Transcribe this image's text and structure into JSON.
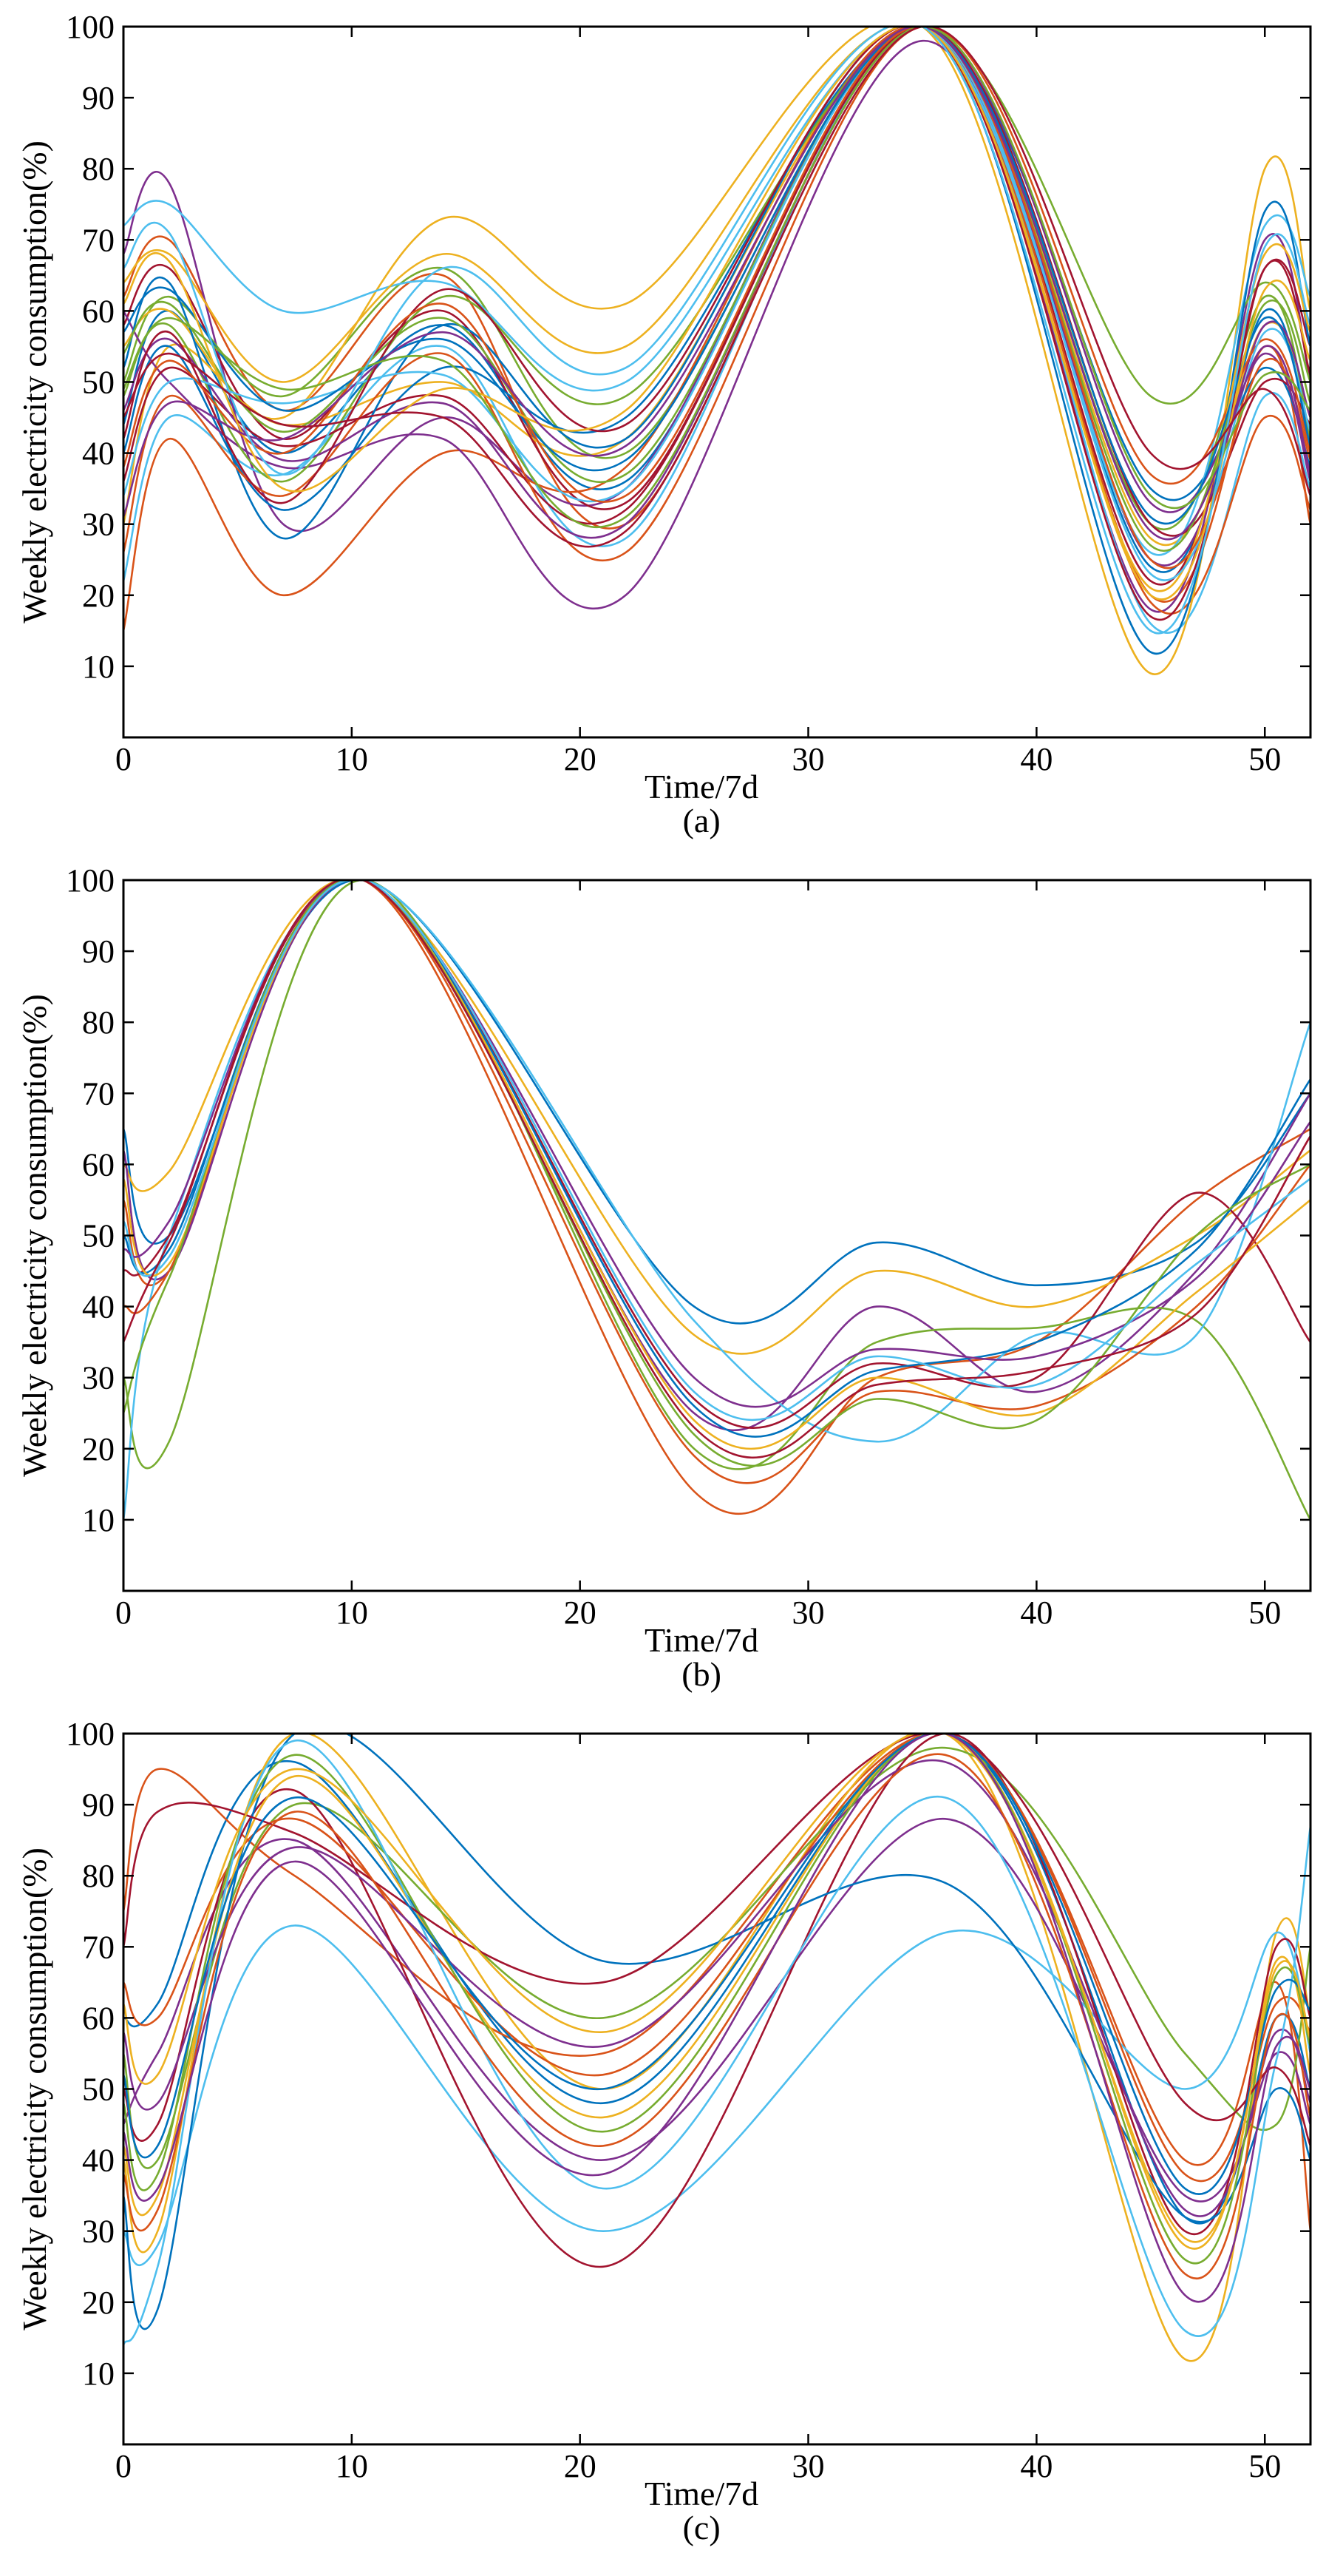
{
  "figure": {
    "panels": [
      {
        "caption": "(a)",
        "xlabel": "Time/7d",
        "ylabel": "Weekly electricity consumption(%)"
      },
      {
        "caption": "(b)",
        "xlabel": "Time/7d",
        "ylabel": "Weekly electricity consumption(%)"
      },
      {
        "caption": "(c)",
        "xlabel": "Time/7d",
        "ylabel": "Weekly electricity consumption(%)"
      }
    ],
    "palette": [
      "#0072BD",
      "#D95319",
      "#EDB120",
      "#7E2F8E",
      "#77AC30",
      "#4DBEEE",
      "#A2142F"
    ]
  },
  "chart_data": [
    {
      "type": "line",
      "title": "",
      "caption": "(a)",
      "xlabel": "Time/7d",
      "ylabel": "Weekly electricity consumption(%)",
      "xlim": [
        0,
        52
      ],
      "ylim": [
        0,
        100
      ],
      "xticks": [
        0,
        10,
        20,
        30,
        40,
        50
      ],
      "yticks": [
        10,
        20,
        30,
        40,
        50,
        60,
        70,
        80,
        90,
        100
      ],
      "grid": false,
      "legend": "none",
      "x": [
        0,
        2,
        7,
        14,
        22,
        35,
        45,
        50,
        52
      ],
      "series": [
        {
          "values": [
            44,
            60,
            40,
            58,
            36,
            100,
            24,
            60,
            40
          ]
        },
        {
          "values": [
            62,
            70,
            46,
            65,
            30,
            100,
            20,
            55,
            30
          ]
        },
        {
          "values": [
            30,
            55,
            44,
            50,
            42,
            100,
            28,
            58,
            45
          ]
        },
        {
          "values": [
            68,
            78,
            30,
            45,
            35,
            100,
            18,
            70,
            50
          ]
        },
        {
          "values": [
            50,
            62,
            48,
            66,
            40,
            100,
            30,
            62,
            42
          ]
        },
        {
          "values": [
            22,
            45,
            37,
            55,
            28,
            100,
            16,
            48,
            35
          ]
        },
        {
          "values": [
            58,
            66,
            42,
            60,
            33,
            100,
            22,
            66,
            55
          ]
        },
        {
          "values": [
            40,
            55,
            32,
            52,
            45,
            100,
            35,
            52,
            38
          ]
        },
        {
          "values": [
            15,
            42,
            20,
            40,
            38,
            100,
            19,
            45,
            32
          ]
        },
        {
          "values": [
            55,
            60,
            45,
            73,
            61,
            100,
            9,
            80,
            60
          ]
        },
        {
          "values": [
            60,
            50,
            38,
            42,
            20,
            98,
            25,
            58,
            45
          ]
        },
        {
          "values": [
            48,
            58,
            36,
            62,
            48,
            100,
            48,
            64,
            50
          ]
        },
        {
          "values": [
            72,
            75,
            60,
            64,
            50,
            100,
            26,
            72,
            62
          ]
        },
        {
          "values": [
            36,
            52,
            41,
            48,
            32,
            100,
            30,
            50,
            44
          ]
        },
        {
          "values": [
            52,
            64,
            28,
            58,
            42,
            100,
            12,
            74,
            55
          ]
        },
        {
          "values": [
            26,
            48,
            34,
            54,
            26,
            100,
            37,
            56,
            40
          ]
        },
        {
          "values": [
            64,
            68,
            50,
            68,
            55,
            100,
            21,
            68,
            57
          ]
        },
        {
          "values": [
            46,
            56,
            39,
            47,
            30,
            100,
            33,
            54,
            36
          ]
        },
        {
          "values": [
            54,
            61,
            43,
            59,
            37,
            100,
            27,
            61,
            47
          ]
        },
        {
          "values": [
            34,
            50,
            47,
            51,
            35,
            100,
            23,
            57,
            43
          ]
        },
        {
          "values": [
            42,
            57,
            33,
            63,
            44,
            100,
            17,
            66,
            51
          ]
        },
        {
          "values": [
            57,
            63,
            46,
            56,
            39,
            100,
            31,
            59,
            41
          ]
        },
        {
          "values": [
            38,
            53,
            40,
            61,
            34,
            100,
            25,
            53,
            39
          ]
        },
        {
          "values": [
            61,
            67,
            35,
            49,
            46,
            100,
            20,
            63,
            53
          ]
        },
        {
          "values": [
            31,
            47,
            42,
            57,
            41,
            100,
            29,
            55,
            37
          ]
        },
        {
          "values": [
            49,
            59,
            49,
            53,
            31,
            100,
            34,
            51,
            46
          ]
        },
        {
          "values": [
            66,
            71,
            37,
            66,
            52,
            100,
            15,
            69,
            58
          ]
        },
        {
          "values": [
            45,
            54,
            44,
            45,
            29,
            100,
            40,
            49,
            34
          ]
        }
      ]
    },
    {
      "type": "line",
      "title": "",
      "caption": "(b)",
      "xlabel": "Time/7d",
      "ylabel": "Weekly electricity consumption(%)",
      "xlim": [
        0,
        52
      ],
      "ylim": [
        0,
        100
      ],
      "xticks": [
        0,
        10,
        20,
        30,
        40,
        50
      ],
      "yticks": [
        10,
        20,
        30,
        40,
        50,
        60,
        70,
        80,
        90,
        100
      ],
      "grid": false,
      "legend": "none",
      "x": [
        0,
        2,
        10.5,
        25,
        33,
        40,
        47,
        52
      ],
      "series": [
        {
          "values": [
            65,
            50,
            100,
            40,
            49,
            43,
            49,
            70
          ]
        },
        {
          "values": [
            55,
            45,
            100,
            14,
            30,
            35,
            55,
            65
          ]
        },
        {
          "values": [
            60,
            59,
            100,
            36,
            45,
            40,
            50,
            62
          ]
        },
        {
          "values": [
            62,
            45,
            100,
            25,
            40,
            28,
            45,
            70
          ]
        },
        {
          "values": [
            30,
            21,
            100,
            20,
            35,
            37,
            38,
            10
          ]
        },
        {
          "values": [
            10,
            50,
            100,
            38,
            21,
            36,
            36,
            80
          ]
        },
        {
          "values": [
            45,
            50,
            100,
            27,
            32,
            30,
            56,
            35
          ]
        },
        {
          "values": [
            50,
            48,
            100,
            26,
            31,
            35,
            48,
            72
          ]
        },
        {
          "values": [
            40,
            45,
            100,
            19,
            28,
            26,
            40,
            60
          ]
        },
        {
          "values": [
            58,
            46,
            100,
            24,
            30,
            25,
            42,
            55
          ]
        },
        {
          "values": [
            48,
            52,
            100,
            30,
            34,
            33,
            44,
            66
          ]
        },
        {
          "values": [
            25,
            44,
            100,
            22,
            27,
            24,
            50,
            60
          ]
        },
        {
          "values": [
            52,
            47,
            100,
            28,
            33,
            29,
            46,
            58
          ]
        },
        {
          "values": [
            35,
            49,
            100,
            23,
            29,
            31,
            39,
            64
          ]
        }
      ]
    },
    {
      "type": "line",
      "title": "",
      "caption": "(c)",
      "xlabel": "Time/7d",
      "ylabel": "Weekly electricity consumption(%)",
      "xlim": [
        0,
        52
      ],
      "ylim": [
        0,
        100
      ],
      "xticks": [
        0,
        10,
        20,
        30,
        40,
        50
      ],
      "yticks": [
        10,
        20,
        30,
        40,
        50,
        60,
        70,
        80,
        90,
        100
      ],
      "grid": false,
      "legend": "none",
      "x": [
        0,
        1.5,
        7.5,
        21,
        36,
        46.5,
        50.5,
        52
      ],
      "series": [
        {
          "values": [
            60,
            62,
            96,
            48,
            100,
            32,
            60,
            50
          ]
        },
        {
          "values": [
            75,
            95,
            80,
            55,
            100,
            40,
            65,
            30
          ]
        },
        {
          "values": [
            40,
            30,
            100,
            50,
            100,
            12,
            72,
            60
          ]
        },
        {
          "values": [
            45,
            55,
            85,
            40,
            88,
            35,
            55,
            45
          ]
        },
        {
          "values": [
            55,
            40,
            90,
            60,
            98,
            55,
            45,
            70
          ]
        },
        {
          "values": [
            30,
            28,
            73,
            30,
            72,
            50,
            72,
            55
          ]
        },
        {
          "values": [
            50,
            45,
            92,
            25,
            100,
            30,
            70,
            60
          ]
        },
        {
          "values": [
            35,
            19,
            100,
            68,
            79,
            32,
            50,
            40
          ]
        },
        {
          "values": [
            65,
            60,
            88,
            52,
            100,
            38,
            62,
            58
          ]
        },
        {
          "values": [
            42,
            35,
            94,
            46,
            100,
            28,
            68,
            52
          ]
        },
        {
          "values": [
            58,
            48,
            84,
            56,
            96,
            33,
            58,
            48
          ]
        },
        {
          "values": [
            48,
            38,
            97,
            44,
            100,
            26,
            66,
            56
          ]
        },
        {
          "values": [
            14,
            25,
            99,
            36,
            91,
            16,
            54,
            87
          ]
        },
        {
          "values": [
            70,
            89,
            86,
            65,
            100,
            48,
            53,
            42
          ]
        },
        {
          "values": [
            52,
            42,
            91,
            50,
            100,
            36,
            64,
            61
          ]
        },
        {
          "values": [
            38,
            33,
            89,
            42,
            97,
            24,
            60,
            46
          ]
        },
        {
          "values": [
            62,
            52,
            95,
            58,
            100,
            29,
            67,
            57
          ]
        },
        {
          "values": [
            44,
            36,
            82,
            38,
            100,
            21,
            56,
            50
          ]
        }
      ]
    }
  ]
}
